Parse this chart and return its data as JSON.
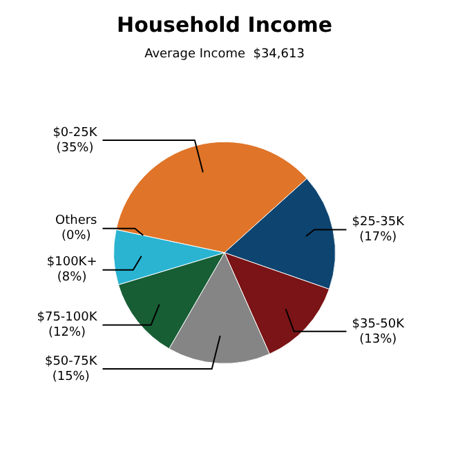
{
  "chart_data": {
    "type": "pie",
    "title": "Household Income",
    "subtitle": "Average Income  $34,613",
    "categories": [
      "$0-25K",
      "$25-35K",
      "$35-50K",
      "$50-75K",
      "$75-100K",
      "$100K+",
      "Others"
    ],
    "values": [
      35,
      17,
      13,
      15,
      12,
      8,
      0
    ],
    "colors": [
      "#e07428",
      "#0e4470",
      "#7a1416",
      "#858585",
      "#175e35",
      "#2ab4d2",
      "#2ab4d2"
    ],
    "value_labels": [
      "(35%)",
      "(17%)",
      "(13%)",
      "(15%)",
      "(12%)",
      "(8%)",
      "(0%)"
    ],
    "legend": false
  }
}
